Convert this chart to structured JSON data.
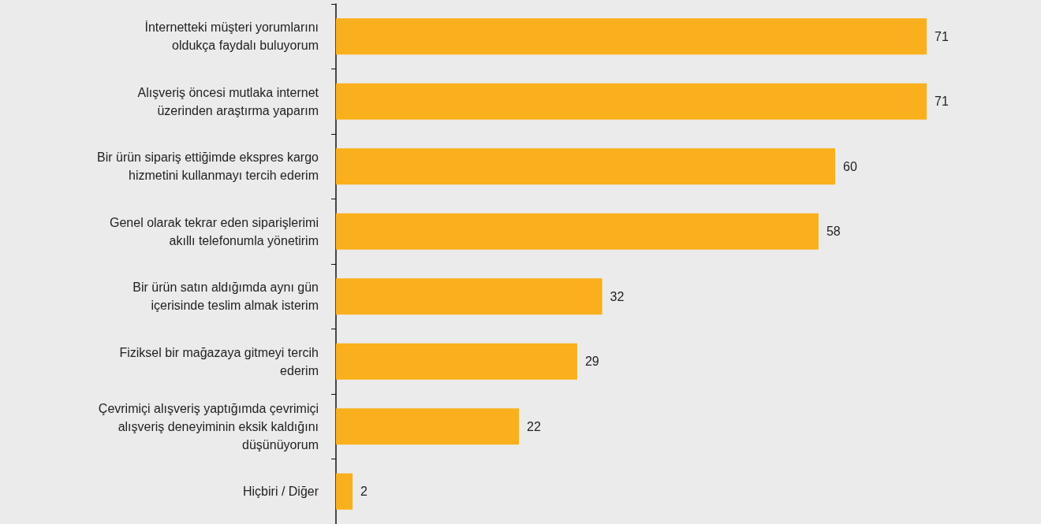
{
  "chart_data": {
    "type": "bar",
    "orientation": "horizontal",
    "categories": [
      "İnternetteki müşteri yorumlarını\noldukça faydalı buluyorum",
      "Alışveriş öncesi mutlaka internet\nüzerinden araştırma yaparım",
      "Bir ürün sipariş ettiğimde ekspres kargo\nhizmetini kullanmayı tercih ederim",
      "Genel olarak tekrar eden siparişlerimi\nakıllı telefonumla yönetirim",
      "Bir ürün satın aldığımda aynı gün\niçerisinde teslim almak isterim",
      "Fiziksel bir mağazaya gitmeyi tercih\nederim",
      "Çevrimiçi alışveriş yaptığımda çevrimiçi\nalışveriş deneyiminin eksik kaldığını\ndüşünüyorum",
      "Hiçbiri / Diğer"
    ],
    "values": [
      71,
      71,
      60,
      58,
      32,
      29,
      22,
      2
    ],
    "color": "#f9b01c",
    "data_labels": true
  }
}
